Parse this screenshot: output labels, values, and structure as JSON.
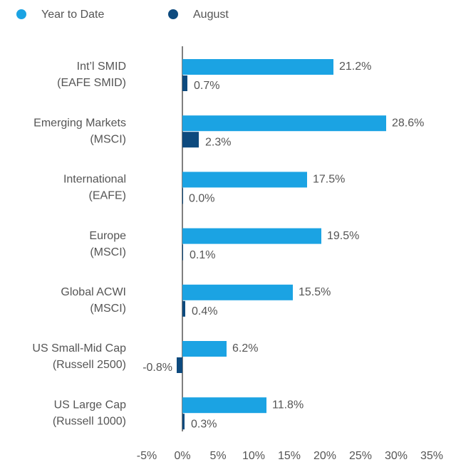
{
  "chart_data": {
    "type": "bar",
    "orientation": "horizontal",
    "legend": "top-left",
    "categories": [
      [
        "Int’l SMID",
        "(EAFE SMID)"
      ],
      [
        "Emerging Markets",
        "(MSCI)"
      ],
      [
        "International",
        "(EAFE)"
      ],
      [
        "Europe",
        "(MSCI)"
      ],
      [
        "Global ACWI",
        "(MSCI)"
      ],
      [
        "US Small-Mid Cap",
        "(Russell 2500)"
      ],
      [
        "US Large Cap",
        "(Russell 1000)"
      ]
    ],
    "series": [
      {
        "name": "Year to Date",
        "color": "#1ba3e3",
        "values": [
          21.2,
          28.6,
          17.5,
          19.5,
          15.5,
          6.2,
          11.8
        ],
        "value_labels": [
          "21.2%",
          "28.6%",
          "17.5%",
          "19.5%",
          "15.5%",
          "6.2%",
          "11.8%"
        ]
      },
      {
        "name": "August",
        "color": "#0d4a7e",
        "values": [
          0.7,
          2.3,
          0.0,
          0.1,
          0.4,
          -0.8,
          0.3
        ],
        "value_labels": [
          "0.7%",
          "2.3%",
          "0.0%",
          "0.1%",
          "0.4%",
          "-0.8%",
          "0.3%"
        ]
      }
    ],
    "xlim": [
      -5,
      35
    ],
    "xticks": [
      {
        "value": -5,
        "label": "-5%"
      },
      {
        "value": 0,
        "label": "0%"
      },
      {
        "value": 5,
        "label": "5%"
      },
      {
        "value": 10,
        "label": "10%"
      },
      {
        "value": 15,
        "label": "15%"
      },
      {
        "value": 20,
        "label": "20%"
      },
      {
        "value": 25,
        "label": "25%"
      },
      {
        "value": 30,
        "label": "30%"
      },
      {
        "value": 35,
        "label": "35%"
      }
    ]
  }
}
